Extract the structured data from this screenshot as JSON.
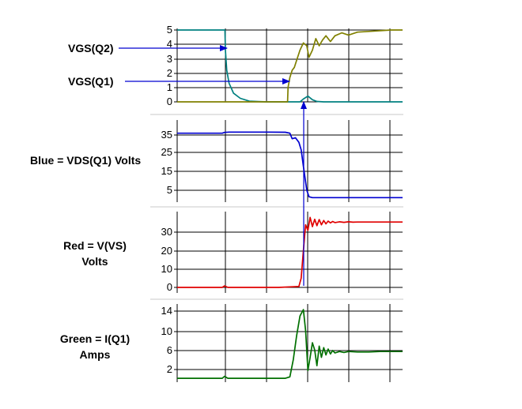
{
  "labels": {
    "vgs_q2": "VGS(Q2)",
    "vgs_q1": "VGS(Q1)",
    "blue_line1": "Blue = VDS(Q1) Volts",
    "red_line1": "Red = V(VS)",
    "red_line2": "Volts",
    "green_line1": "Green = I(Q1)",
    "green_line2": "Amps"
  },
  "colors": {
    "vgs_q2": "#008080",
    "vgs_q1": "#808000",
    "vds": "#0000d0",
    "vvs": "#e00000",
    "iq1": "#007000",
    "arrow": "#0000d0"
  },
  "chart_data": [
    {
      "type": "line",
      "title": "",
      "xlabel": "",
      "ylabel": "",
      "ylim": [
        0,
        5
      ],
      "yticks": [
        "0",
        "1",
        "2",
        "3",
        "4",
        "5"
      ],
      "xlim": [
        0,
        10
      ],
      "grid": true,
      "series": [
        {
          "name": "VGS(Q2)",
          "color": "#008080",
          "x": [
            0,
            2.12,
            2.14,
            2.2,
            2.3,
            2.5,
            2.8,
            3.2,
            3.6,
            4.0,
            5.0,
            5.45,
            5.6,
            5.8,
            6.0,
            6.2,
            6.5,
            7.0,
            10
          ],
          "y": [
            5,
            5,
            3.6,
            2.2,
            1.3,
            0.6,
            0.25,
            0.05,
            0.02,
            0,
            0,
            0,
            0.2,
            0.4,
            0.15,
            0.03,
            0,
            0,
            0
          ]
        },
        {
          "name": "VGS(Q1)",
          "color": "#808000",
          "x": [
            0,
            4.9,
            4.92,
            5.0,
            5.1,
            5.2,
            5.3,
            5.45,
            5.6,
            5.75,
            5.85,
            6.0,
            6.15,
            6.3,
            6.45,
            6.6,
            6.8,
            7.0,
            7.3,
            7.6,
            8.0,
            8.5,
            9.0,
            9.5,
            10
          ],
          "y": [
            0,
            0,
            1.0,
            1.7,
            2.2,
            2.4,
            2.9,
            3.6,
            4.1,
            3.9,
            3.1,
            3.6,
            4.4,
            3.9,
            4.3,
            4.6,
            4.2,
            4.6,
            4.8,
            4.65,
            4.85,
            4.9,
            4.95,
            5.0,
            5.0
          ]
        }
      ]
    },
    {
      "type": "line",
      "title": "",
      "xlabel": "",
      "ylabel": "",
      "ylim": [
        0,
        40
      ],
      "yticks": [
        "5",
        "15",
        "25",
        "35"
      ],
      "xlim": [
        0,
        10
      ],
      "grid": true,
      "series": [
        {
          "name": "VDS(Q1)",
          "color": "#0000d0",
          "x": [
            0,
            2.0,
            2.1,
            2.3,
            4.0,
            4.8,
            5.0,
            5.1,
            5.25,
            5.4,
            5.5,
            5.6,
            5.75,
            5.85,
            6.0,
            10
          ],
          "y": [
            36,
            36,
            36.4,
            36.6,
            36.6,
            36.5,
            36,
            33,
            33.5,
            31,
            27,
            18,
            5,
            1.5,
            1,
            1
          ]
        }
      ]
    },
    {
      "type": "line",
      "title": "",
      "xlabel": "",
      "ylabel": "",
      "ylim": [
        0,
        38
      ],
      "yticks": [
        "0",
        "10",
        "20",
        "30"
      ],
      "xlim": [
        0,
        10
      ],
      "grid": true,
      "series": [
        {
          "name": "V(VS)",
          "color": "#e00000",
          "x": [
            0,
            2.0,
            2.1,
            2.25,
            4.5,
            5.4,
            5.5,
            5.6,
            5.7,
            5.8,
            5.9,
            6.0,
            6.1,
            6.2,
            6.3,
            6.4,
            6.5,
            6.6,
            6.7,
            6.8,
            6.9,
            7.0,
            7.2,
            7.4,
            7.6,
            7.8,
            8.0,
            8.5,
            9.0,
            10
          ],
          "y": [
            0,
            0,
            0.8,
            0,
            0,
            0.5,
            5,
            20,
            34,
            31,
            38,
            33,
            37,
            33.5,
            36.8,
            34,
            36.3,
            34.5,
            36,
            35,
            35.8,
            35.2,
            35.6,
            35.3,
            35.6,
            35.4,
            35.5,
            35.5,
            35.5,
            35.5
          ]
        }
      ]
    },
    {
      "type": "line",
      "title": "",
      "xlabel": "",
      "ylabel": "",
      "ylim": [
        0,
        15
      ],
      "yticks": [
        "2",
        "6",
        "10",
        "14"
      ],
      "xlim": [
        0,
        10
      ],
      "grid": true,
      "series": [
        {
          "name": "I(Q1)",
          "color": "#007000",
          "x": [
            0,
            2.0,
            2.1,
            2.25,
            4.8,
            5.0,
            5.15,
            5.3,
            5.45,
            5.6,
            5.7,
            5.8,
            5.9,
            6.0,
            6.1,
            6.2,
            6.3,
            6.4,
            6.5,
            6.6,
            6.7,
            6.8,
            6.9,
            7.0,
            7.2,
            7.4,
            7.6,
            8.0,
            8.5,
            9.0,
            10
          ],
          "y": [
            0.2,
            0.2,
            0.6,
            0.2,
            0.2,
            0.5,
            4,
            9,
            13,
            14.3,
            10,
            1.8,
            4.5,
            7.5,
            6,
            2.8,
            6.8,
            4.5,
            6.5,
            5,
            6.2,
            5.2,
            5.9,
            5.4,
            5.7,
            5.5,
            5.7,
            5.6,
            5.6,
            5.7,
            5.7
          ]
        }
      ]
    }
  ]
}
